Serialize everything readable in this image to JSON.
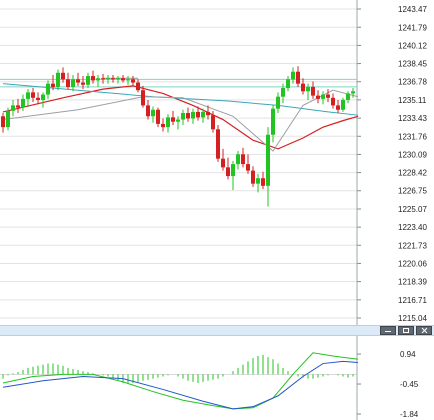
{
  "chart_data": [
    {
      "type": "candlestick",
      "title": "",
      "y_axis_position": "right",
      "grid": true,
      "y_ticks": [
        "1243.47",
        "1241.79",
        "1240.12",
        "1238.45",
        "1236.78",
        "1235.11",
        "1233.43",
        "1231.76",
        "1230.09",
        "1228.42",
        "1226.75",
        "1225.07",
        "1223.40",
        "1221.73",
        "1220.06",
        "1218.39",
        "1216.71",
        "1215.04"
      ],
      "ylim": [
        1215.04,
        1243.47
      ],
      "horizontal_lines": [
        1237.0,
        1236.3
      ],
      "colors": {
        "up": "#22c322",
        "down": "#d42020",
        "ma_red": "#d42020",
        "ma_teal": "#3aa6b8",
        "ma_gray": "#9aa0a6",
        "hline": "#7fd4c8"
      },
      "series": [
        {
          "kind": "ohlc",
          "values": [
            [
              1233.6,
              1233.9,
              1232.1,
              1232.6
            ],
            [
              1232.6,
              1234.4,
              1232.3,
              1234.1
            ],
            [
              1234.1,
              1235.1,
              1233.6,
              1234.6
            ],
            [
              1234.6,
              1235.2,
              1233.9,
              1234.4
            ],
            [
              1234.4,
              1235.6,
              1234.1,
              1235.2
            ],
            [
              1235.2,
              1236.1,
              1234.6,
              1235.8
            ],
            [
              1235.8,
              1236.2,
              1234.9,
              1235.3
            ],
            [
              1235.3,
              1235.8,
              1234.7,
              1235.1
            ],
            [
              1235.1,
              1235.8,
              1234.4,
              1235.6
            ],
            [
              1235.6,
              1236.9,
              1235.2,
              1236.6
            ],
            [
              1236.6,
              1237.4,
              1236.0,
              1236.3
            ],
            [
              1236.3,
              1237.9,
              1236.0,
              1237.6
            ],
            [
              1237.6,
              1238.1,
              1236.7,
              1237.0
            ],
            [
              1237.0,
              1237.6,
              1236.1,
              1236.3
            ],
            [
              1236.3,
              1237.4,
              1235.9,
              1237.0
            ],
            [
              1237.0,
              1237.6,
              1236.4,
              1236.7
            ],
            [
              1236.7,
              1237.3,
              1236.1,
              1236.5
            ],
            [
              1236.5,
              1237.6,
              1236.2,
              1237.3
            ],
            [
              1237.3,
              1237.8,
              1236.6,
              1236.9
            ],
            [
              1236.9,
              1237.4,
              1236.3,
              1237.1
            ],
            [
              1237.1,
              1237.5,
              1236.6,
              1237.0
            ],
            [
              1237.0,
              1237.4,
              1236.6,
              1237.1
            ],
            [
              1237.1,
              1237.4,
              1236.7,
              1237.0
            ],
            [
              1237.0,
              1237.3,
              1236.6,
              1237.1
            ],
            [
              1237.1,
              1237.4,
              1236.7,
              1236.9
            ],
            [
              1236.9,
              1237.3,
              1236.5,
              1237.0
            ],
            [
              1237.0,
              1237.3,
              1236.4,
              1236.7
            ],
            [
              1236.7,
              1237.0,
              1235.8,
              1236.0
            ],
            [
              1236.0,
              1236.4,
              1234.4,
              1234.6
            ],
            [
              1234.6,
              1235.1,
              1233.3,
              1233.6
            ],
            [
              1233.6,
              1234.5,
              1233.0,
              1234.2
            ],
            [
              1234.2,
              1234.4,
              1232.6,
              1232.9
            ],
            [
              1232.9,
              1233.4,
              1232.2,
              1232.6
            ],
            [
              1232.6,
              1233.8,
              1232.1,
              1233.5
            ],
            [
              1233.5,
              1234.1,
              1232.8,
              1233.1
            ],
            [
              1233.1,
              1233.6,
              1232.4,
              1233.3
            ],
            [
              1233.3,
              1234.2,
              1232.8,
              1233.9
            ],
            [
              1233.9,
              1234.4,
              1233.1,
              1233.4
            ],
            [
              1233.4,
              1234.3,
              1232.9,
              1234.0
            ],
            [
              1234.0,
              1234.5,
              1233.2,
              1233.5
            ],
            [
              1233.5,
              1234.3,
              1233.0,
              1234.0
            ],
            [
              1234.0,
              1234.6,
              1233.3,
              1233.7
            ],
            [
              1233.7,
              1234.1,
              1232.1,
              1232.4
            ],
            [
              1232.4,
              1232.8,
              1229.4,
              1229.7
            ],
            [
              1229.7,
              1230.6,
              1228.6,
              1228.9
            ],
            [
              1228.9,
              1229.8,
              1227.8,
              1228.1
            ],
            [
              1228.1,
              1229.5,
              1226.8,
              1229.2
            ],
            [
              1229.2,
              1230.4,
              1228.7,
              1230.1
            ],
            [
              1230.1,
              1230.7,
              1228.9,
              1229.2
            ],
            [
              1229.2,
              1230.1,
              1228.3,
              1228.6
            ],
            [
              1228.6,
              1229.0,
              1227.1,
              1227.4
            ],
            [
              1227.4,
              1228.3,
              1226.6,
              1227.9
            ],
            [
              1227.9,
              1228.5,
              1226.9,
              1227.2
            ],
            [
              1227.2,
              1232.6,
              1225.3,
              1231.9
            ],
            [
              1231.9,
              1234.6,
              1231.2,
              1234.3
            ],
            [
              1234.3,
              1235.8,
              1233.9,
              1235.4
            ],
            [
              1235.4,
              1236.6,
              1234.8,
              1236.2
            ],
            [
              1236.2,
              1237.3,
              1235.9,
              1237.0
            ],
            [
              1237.0,
              1238.1,
              1236.6,
              1237.7
            ],
            [
              1237.7,
              1238.2,
              1236.3,
              1236.6
            ],
            [
              1236.6,
              1237.1,
              1235.6,
              1235.9
            ],
            [
              1235.9,
              1236.6,
              1235.1,
              1236.3
            ],
            [
              1236.3,
              1236.8,
              1235.2,
              1235.5
            ],
            [
              1235.5,
              1236.0,
              1234.8,
              1235.2
            ],
            [
              1235.2,
              1235.9,
              1234.7,
              1235.6
            ],
            [
              1235.6,
              1236.1,
              1234.9,
              1235.3
            ],
            [
              1235.3,
              1235.7,
              1234.3,
              1234.6
            ],
            [
              1234.6,
              1235.1,
              1233.9,
              1234.2
            ],
            [
              1234.2,
              1235.3,
              1234.0,
              1235.1
            ],
            [
              1235.1,
              1235.9,
              1234.8,
              1235.7
            ],
            [
              1235.7,
              1236.2,
              1235.3,
              1235.9
            ]
          ]
        },
        {
          "kind": "line",
          "color": "#d42020",
          "values": [
            [
              0,
              1234.0
            ],
            [
              12,
              1235.3
            ],
            [
              20,
              1236.1
            ],
            [
              26,
              1236.4
            ],
            [
              32,
              1235.7
            ],
            [
              38,
              1234.6
            ],
            [
              44,
              1233.3
            ],
            [
              50,
              1231.4
            ],
            [
              55,
              1230.6
            ],
            [
              60,
              1231.6
            ],
            [
              64,
              1232.6
            ],
            [
              68,
              1233.2
            ],
            [
              71,
              1233.6
            ]
          ]
        },
        {
          "kind": "line",
          "color": "#3aa6b8",
          "values": [
            [
              0,
              1236.6
            ],
            [
              15,
              1236.0
            ],
            [
              30,
              1235.4
            ],
            [
              45,
              1235.0
            ],
            [
              55,
              1234.6
            ],
            [
              65,
              1234.0
            ],
            [
              71,
              1233.7
            ]
          ]
        },
        {
          "kind": "line",
          "color": "#9aa0a6",
          "values": [
            [
              0,
              1233.3
            ],
            [
              15,
              1234.2
            ],
            [
              28,
              1235.4
            ],
            [
              36,
              1235.3
            ],
            [
              46,
              1233.6
            ],
            [
              54,
              1230.4
            ],
            [
              60,
              1234.6
            ],
            [
              66,
              1236.0
            ],
            [
              71,
              1235.4
            ]
          ]
        },
        {
          "kind": "line",
          "color": "#999999",
          "values": [
            [
              20,
              1237.1
            ],
            [
              27,
              1237.1
            ]
          ]
        }
      ]
    },
    {
      "type": "macd",
      "title": "",
      "y_axis_position": "right",
      "y_ticks": [
        "0.94",
        "-0.45",
        "-1.84"
      ],
      "ylim": [
        -1.84,
        1.5
      ],
      "colors": {
        "hist": "#22c322",
        "macd": "#22c322",
        "signal": "#2255cc",
        "zero": "#bbbbbb"
      },
      "series": [
        {
          "kind": "histogram",
          "values": [
            -0.2,
            -0.05,
            0.05,
            0.1,
            0.2,
            0.3,
            0.35,
            0.4,
            0.45,
            0.5,
            0.5,
            0.45,
            0.4,
            0.3,
            0.25,
            0.2,
            0.15,
            0.1,
            0.05,
            0.0,
            -0.05,
            -0.1,
            -0.2,
            -0.3,
            -0.4,
            -0.45,
            -0.4,
            -0.35,
            -0.3,
            -0.25,
            -0.2,
            -0.15,
            -0.1,
            -0.05,
            0.0,
            -0.1,
            -0.2,
            -0.3,
            -0.35,
            -0.4,
            -0.35,
            -0.3,
            -0.25,
            -0.2,
            -0.1,
            0.0,
            0.15,
            0.3,
            0.45,
            0.6,
            0.75,
            0.85,
            0.9,
            0.8,
            0.7,
            0.5,
            0.3,
            0.15,
            0.0,
            -0.1,
            -0.15,
            -0.2,
            -0.2,
            -0.15,
            -0.1,
            -0.05,
            0.0,
            -0.05,
            -0.1,
            -0.15,
            -0.1
          ]
        },
        {
          "kind": "line",
          "color": "#22c322",
          "values": [
            [
              0,
              -0.4
            ],
            [
              6,
              -0.1
            ],
            [
              12,
              0.0
            ],
            [
              18,
              0.0
            ],
            [
              24,
              -0.35
            ],
            [
              30,
              -0.8
            ],
            [
              36,
              -1.2
            ],
            [
              42,
              -1.45
            ],
            [
              46,
              -1.6
            ],
            [
              50,
              -1.55
            ],
            [
              54,
              -1.1
            ],
            [
              58,
              0.0
            ],
            [
              62,
              1.0
            ],
            [
              66,
              0.85
            ],
            [
              71,
              0.7
            ]
          ]
        },
        {
          "kind": "line",
          "color": "#2255cc",
          "values": [
            [
              0,
              -0.6
            ],
            [
              8,
              -0.3
            ],
            [
              16,
              -0.1
            ],
            [
              24,
              -0.2
            ],
            [
              32,
              -0.7
            ],
            [
              40,
              -1.25
            ],
            [
              46,
              -1.6
            ],
            [
              50,
              -1.5
            ],
            [
              55,
              -1.0
            ],
            [
              60,
              -0.1
            ],
            [
              64,
              0.5
            ],
            [
              68,
              0.6
            ],
            [
              71,
              0.55
            ]
          ]
        }
      ]
    }
  ],
  "window_controls": {
    "minimize_icon": "minimize-icon",
    "maximize_icon": "maximize-icon",
    "close_icon": "close-icon"
  }
}
